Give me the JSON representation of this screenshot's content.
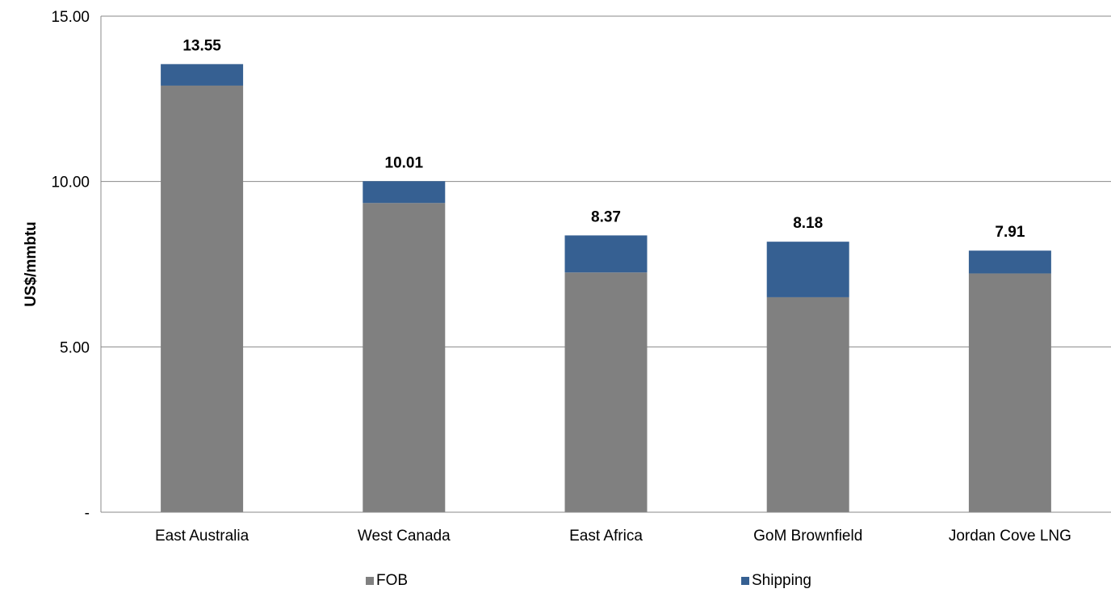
{
  "chart_data": {
    "type": "bar",
    "stacked": true,
    "categories": [
      "East Australia",
      "West Canada",
      "East Africa",
      "GoM Brownfield",
      "Jordan Cove LNG"
    ],
    "series": [
      {
        "name": "FOB",
        "color": "#808080",
        "values": [
          12.9,
          9.35,
          7.25,
          6.5,
          7.22
        ]
      },
      {
        "name": "Shipping",
        "color": "#366092",
        "values": [
          0.65,
          0.66,
          1.12,
          1.68,
          0.69
        ]
      }
    ],
    "totals": [
      "13.55",
      "10.01",
      "8.37",
      "8.18",
      "7.91"
    ],
    "ylabel": "US$/mmbtu",
    "ylim": [
      0,
      15
    ],
    "yticks": [
      {
        "value": 0,
        "label": "-"
      },
      {
        "value": 5,
        "label": "5.00"
      },
      {
        "value": 10,
        "label": "10.00"
      },
      {
        "value": 15,
        "label": "15.00"
      }
    ],
    "grid": true,
    "legend_position": "bottom"
  }
}
